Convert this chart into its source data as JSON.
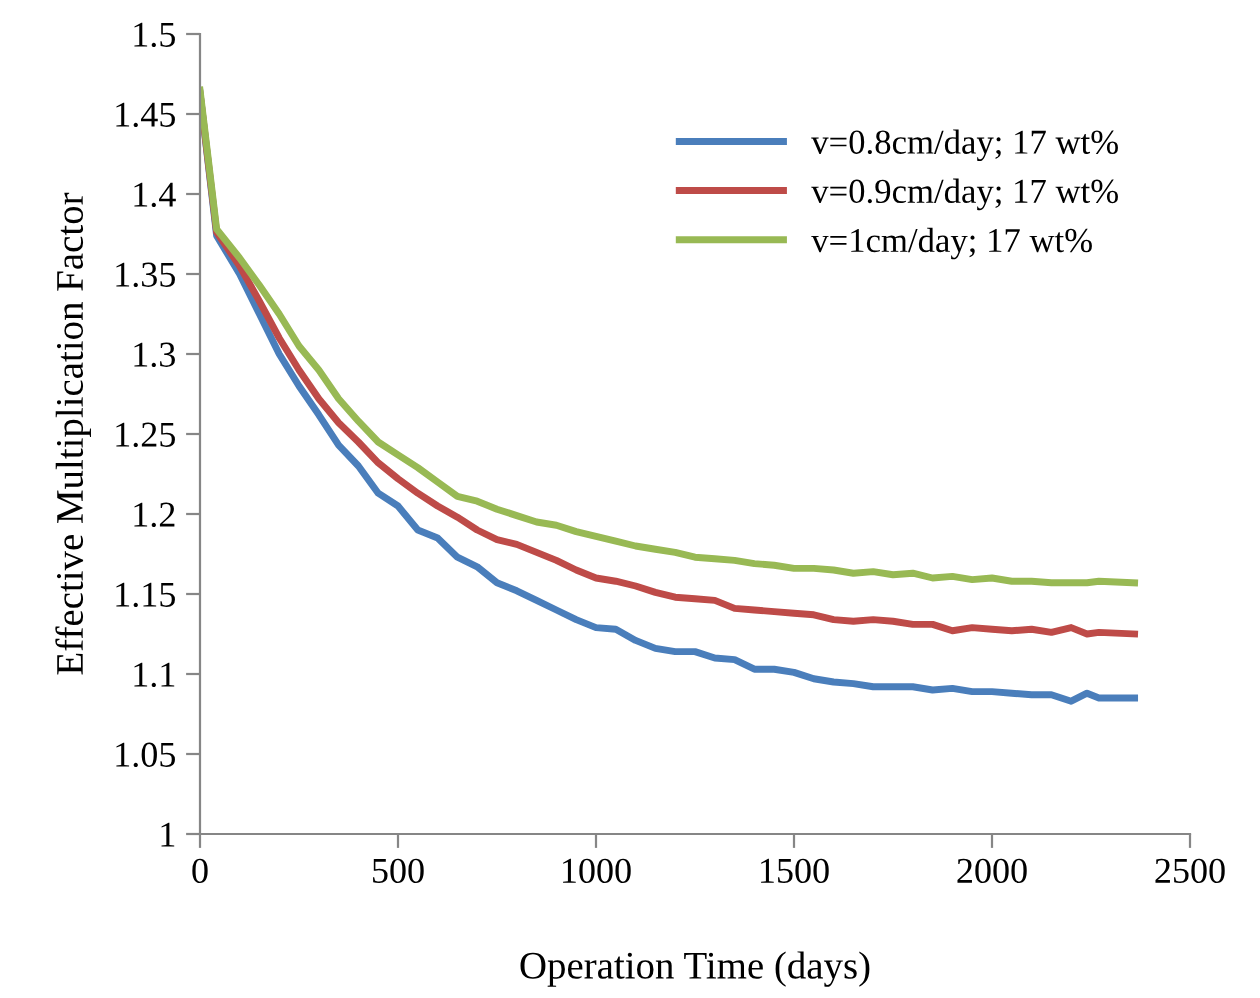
{
  "chart_data": {
    "type": "line",
    "xlabel": "Operation Time (days)",
    "ylabel": "Effective Multiplication Factor",
    "x": [
      0,
      42,
      100,
      150,
      200,
      250,
      300,
      350,
      400,
      450,
      500,
      550,
      600,
      650,
      700,
      750,
      800,
      850,
      900,
      950,
      1000,
      1050,
      1100,
      1150,
      1200,
      1250,
      1300,
      1350,
      1400,
      1450,
      1500,
      1550,
      1600,
      1650,
      1700,
      1750,
      1800,
      1850,
      1900,
      1950,
      2000,
      2050,
      2100,
      2150,
      2200,
      2240,
      2270,
      2360
    ],
    "series": [
      {
        "name": "v=0.8cm/day; 17 wt%",
        "color": "#4a7ebb",
        "values": [
          1.463,
          1.374,
          1.35,
          1.325,
          1.3,
          1.28,
          1.262,
          1.243,
          1.23,
          1.213,
          1.205,
          1.19,
          1.185,
          1.173,
          1.167,
          1.157,
          1.152,
          1.146,
          1.14,
          1.134,
          1.129,
          1.128,
          1.121,
          1.116,
          1.114,
          1.114,
          1.11,
          1.109,
          1.103,
          1.103,
          1.101,
          1.097,
          1.095,
          1.094,
          1.092,
          1.092,
          1.092,
          1.09,
          1.091,
          1.089,
          1.089,
          1.088,
          1.087,
          1.087,
          1.083,
          1.088,
          1.085,
          1.085
        ]
      },
      {
        "name": "v=0.9cm/day; 17 wt%",
        "color": "#be4b48",
        "values": [
          1.463,
          1.376,
          1.355,
          1.333,
          1.31,
          1.29,
          1.272,
          1.257,
          1.245,
          1.232,
          1.222,
          1.213,
          1.205,
          1.198,
          1.19,
          1.184,
          1.181,
          1.176,
          1.171,
          1.165,
          1.16,
          1.158,
          1.155,
          1.151,
          1.148,
          1.147,
          1.146,
          1.141,
          1.14,
          1.139,
          1.138,
          1.137,
          1.134,
          1.133,
          1.134,
          1.133,
          1.131,
          1.131,
          1.127,
          1.129,
          1.128,
          1.127,
          1.128,
          1.126,
          1.129,
          1.125,
          1.126,
          1.125
        ]
      },
      {
        "name": "v=1cm/day; 17 wt%",
        "color": "#98b954",
        "values": [
          1.465,
          1.378,
          1.36,
          1.343,
          1.325,
          1.305,
          1.29,
          1.272,
          1.258,
          1.245,
          1.237,
          1.229,
          1.22,
          1.211,
          1.208,
          1.203,
          1.199,
          1.195,
          1.193,
          1.189,
          1.186,
          1.183,
          1.18,
          1.178,
          1.176,
          1.173,
          1.172,
          1.171,
          1.169,
          1.168,
          1.166,
          1.166,
          1.165,
          1.163,
          1.164,
          1.162,
          1.163,
          1.16,
          1.161,
          1.159,
          1.16,
          1.158,
          1.158,
          1.157,
          1.157,
          1.157,
          1.158,
          1.157
        ]
      }
    ],
    "xlim": [
      0,
      2500
    ],
    "xticks": [
      0,
      500,
      1000,
      1500,
      2000,
      2500
    ],
    "ylim": [
      1,
      1.5
    ],
    "yticks": [
      {
        "value": 1,
        "label": "1"
      },
      1.05,
      {
        "value": 1.1,
        "label": "1.1"
      },
      1.15,
      {
        "value": 1.2,
        "label": "1.2"
      },
      1.25,
      {
        "value": 1.3,
        "label": "1.3"
      },
      1.35,
      {
        "value": 1.4,
        "label": "1.4"
      },
      1.45,
      {
        "value": 1.5,
        "label": "1.5"
      }
    ],
    "grid": false,
    "legend": "top right",
    "marker": "none",
    "line_style": "solid"
  }
}
